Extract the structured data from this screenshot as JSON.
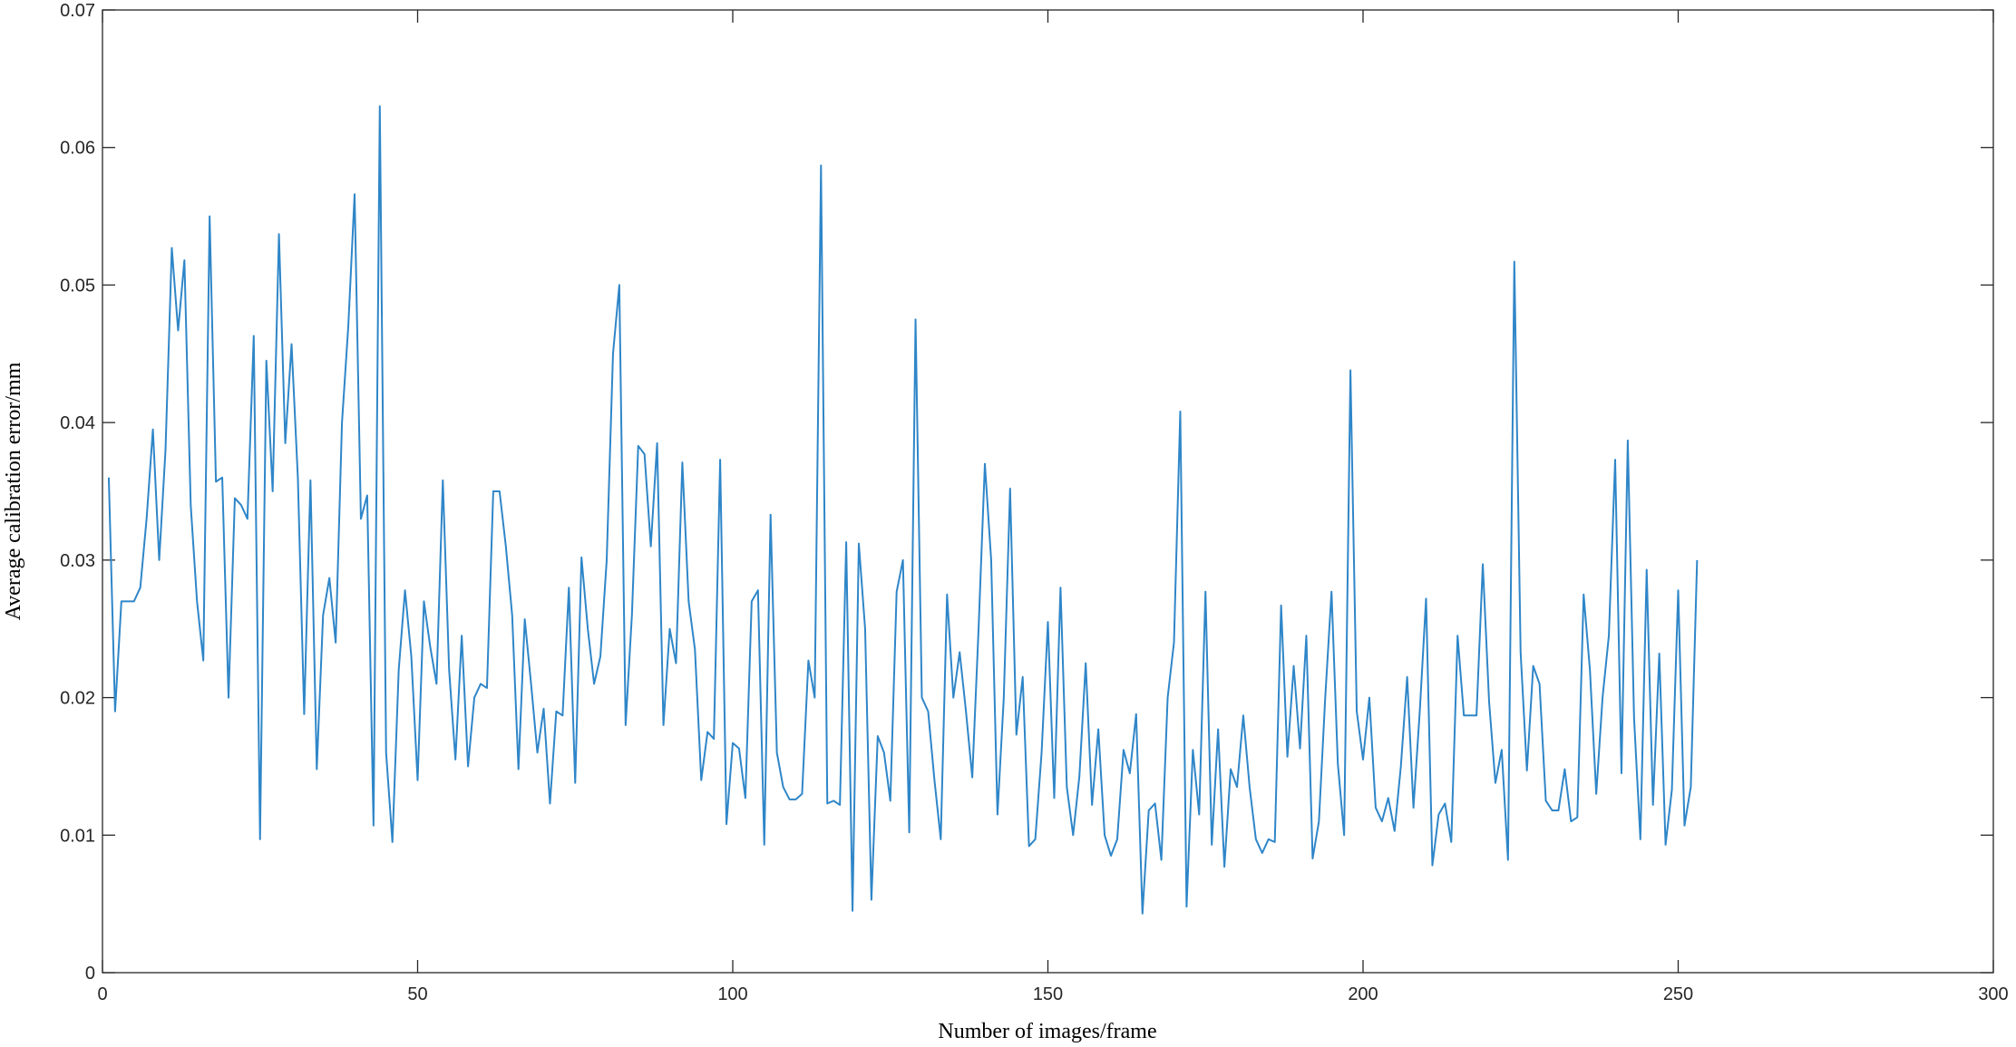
{
  "chart_data": {
    "type": "line",
    "xlabel": "Number of images/frame",
    "ylabel": "Average calibration error/mm",
    "color": "#2f86c8",
    "xlim": [
      0,
      300
    ],
    "xticks": [
      0,
      50,
      100,
      150,
      200,
      250,
      300
    ],
    "ylim": [
      0,
      0.07
    ],
    "yticks": [
      0,
      0.01,
      0.02,
      0.03,
      0.04,
      0.05,
      0.06,
      0.07
    ],
    "x": [
      1,
      2,
      3,
      4,
      5,
      6,
      7,
      8,
      9,
      10,
      11,
      12,
      13,
      14,
      15,
      16,
      17,
      18,
      19,
      20,
      21,
      22,
      23,
      24,
      25,
      26,
      27,
      28,
      29,
      30,
      31,
      32,
      33,
      34,
      35,
      36,
      37,
      38,
      39,
      40,
      41,
      42,
      43,
      44,
      45,
      46,
      47,
      48,
      49,
      50,
      51,
      52,
      53,
      54,
      55,
      56,
      57,
      58,
      59,
      60,
      61,
      62,
      63,
      64,
      65,
      66,
      67,
      68,
      69,
      70,
      71,
      72,
      73,
      74,
      75,
      76,
      77,
      78,
      79,
      80,
      81,
      82,
      83,
      84,
      85,
      86,
      87,
      88,
      89,
      90,
      91,
      92,
      93,
      94,
      95,
      96,
      97,
      98,
      99,
      100,
      101,
      102,
      103,
      104,
      105,
      106,
      107,
      108,
      109,
      110,
      111,
      112,
      113,
      114,
      115,
      116,
      117,
      118,
      119,
      120,
      121,
      122,
      123,
      124,
      125,
      126,
      127,
      128,
      129,
      130,
      131,
      132,
      133,
      134,
      135,
      136,
      137,
      138,
      139,
      140,
      141,
      142,
      143,
      144,
      145,
      146,
      147,
      148,
      149,
      150,
      151,
      152,
      153,
      154,
      155,
      156,
      157,
      158,
      159,
      160,
      161,
      162,
      163,
      164,
      165,
      166,
      167,
      168,
      169,
      170,
      171,
      172,
      173,
      174,
      175,
      176,
      177,
      178,
      179,
      180,
      181,
      182,
      183,
      184,
      185,
      186,
      187,
      188,
      189,
      190,
      191,
      192,
      193,
      194,
      195,
      196,
      197,
      198,
      199,
      200,
      201,
      202,
      203,
      204,
      205,
      206,
      207,
      208,
      209,
      210,
      211,
      212,
      213,
      214,
      215,
      216,
      217,
      218,
      219,
      220,
      221,
      222,
      223,
      224,
      225,
      226,
      227,
      228,
      229,
      230,
      231,
      232,
      233,
      234,
      235,
      236,
      237,
      238,
      239,
      240,
      241,
      242,
      243,
      244,
      245,
      246,
      247,
      248,
      249,
      250,
      251,
      252,
      253
    ],
    "values": [
      0.036,
      0.019,
      0.027,
      0.027,
      0.027,
      0.028,
      0.033,
      0.0395,
      0.03,
      0.038,
      0.0527,
      0.0467,
      0.0518,
      0.034,
      0.027,
      0.0227,
      0.055,
      0.0357,
      0.036,
      0.02,
      0.0345,
      0.034,
      0.033,
      0.0463,
      0.0097,
      0.0445,
      0.035,
      0.0537,
      0.0385,
      0.0457,
      0.036,
      0.0188,
      0.0358,
      0.0148,
      0.026,
      0.0287,
      0.024,
      0.04,
      0.047,
      0.0566,
      0.033,
      0.0347,
      0.0107,
      0.063,
      0.016,
      0.0095,
      0.022,
      0.0278,
      0.023,
      0.014,
      0.027,
      0.0237,
      0.021,
      0.0358,
      0.022,
      0.0155,
      0.0245,
      0.015,
      0.02,
      0.021,
      0.0207,
      0.035,
      0.035,
      0.031,
      0.026,
      0.0148,
      0.0257,
      0.021,
      0.016,
      0.0192,
      0.0123,
      0.019,
      0.0187,
      0.028,
      0.0138,
      0.0302,
      0.025,
      0.021,
      0.023,
      0.03,
      0.045,
      0.05,
      0.018,
      0.026,
      0.0383,
      0.0377,
      0.031,
      0.0385,
      0.018,
      0.025,
      0.0225,
      0.0371,
      0.027,
      0.0235,
      0.014,
      0.0175,
      0.017,
      0.0373,
      0.0108,
      0.0167,
      0.0163,
      0.0127,
      0.027,
      0.0278,
      0.0093,
      0.0333,
      0.016,
      0.0135,
      0.0126,
      0.0126,
      0.013,
      0.0227,
      0.02,
      0.0587,
      0.0123,
      0.0125,
      0.0122,
      0.0313,
      0.0045,
      0.0312,
      0.025,
      0.0053,
      0.0172,
      0.016,
      0.0125,
      0.0277,
      0.03,
      0.0102,
      0.0475,
      0.02,
      0.019,
      0.014,
      0.0097,
      0.0275,
      0.02,
      0.0233,
      0.019,
      0.0142,
      0.025,
      0.037,
      0.03,
      0.0115,
      0.02,
      0.0352,
      0.0173,
      0.0215,
      0.0092,
      0.0097,
      0.016,
      0.0255,
      0.0127,
      0.028,
      0.0135,
      0.01,
      0.0143,
      0.0225,
      0.0122,
      0.0177,
      0.01,
      0.0085,
      0.0097,
      0.0162,
      0.0145,
      0.0188,
      0.0043,
      0.0118,
      0.0123,
      0.0082,
      0.02,
      0.024,
      0.0408,
      0.0048,
      0.0162,
      0.0115,
      0.0277,
      0.0093,
      0.0177,
      0.0077,
      0.0148,
      0.0135,
      0.0187,
      0.0135,
      0.0097,
      0.0087,
      0.0097,
      0.0095,
      0.0267,
      0.0157,
      0.0223,
      0.0163,
      0.0245,
      0.0083,
      0.011,
      0.02,
      0.0277,
      0.0152,
      0.01,
      0.0438,
      0.019,
      0.0155,
      0.02,
      0.012,
      0.011,
      0.0127,
      0.0103,
      0.015,
      0.0215,
      0.012,
      0.019,
      0.0272,
      0.0078,
      0.0115,
      0.0123,
      0.0095,
      0.0245,
      0.0187,
      0.0187,
      0.0187,
      0.0297,
      0.0197,
      0.0138,
      0.0162,
      0.0082,
      0.0517,
      0.0233,
      0.0147,
      0.0223,
      0.021,
      0.0125,
      0.0118,
      0.0118,
      0.0148,
      0.011,
      0.0113,
      0.0275,
      0.022,
      0.013,
      0.02,
      0.0245,
      0.0373,
      0.0145,
      0.0387,
      0.0185,
      0.0097,
      0.0293,
      0.0122,
      0.0232,
      0.0093,
      0.0133,
      0.0278,
      0.0107,
      0.0135,
      0.03
    ]
  }
}
